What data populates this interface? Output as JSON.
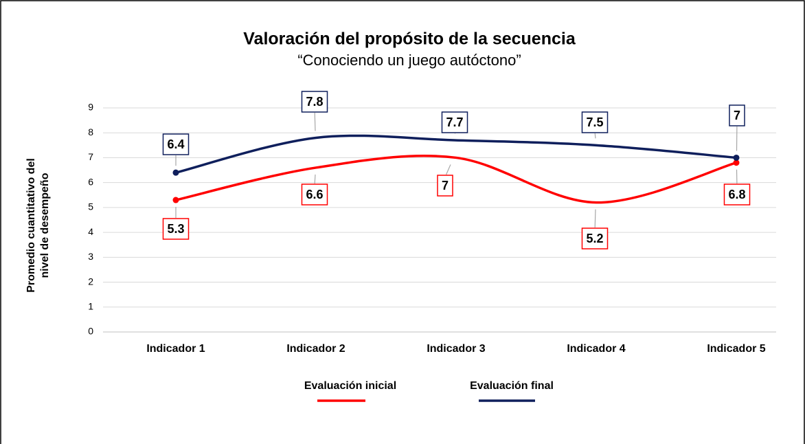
{
  "chart_data": {
    "type": "line",
    "title": "Valoración del propósito de la secuencia",
    "subtitle": "“Conociendo un juego autóctono”",
    "ylabel": [
      "Promedio cuantitativo del",
      "nivel de desempeño"
    ],
    "categories": [
      "Indicador 1",
      "Indicador 2",
      "Indicador 3",
      "Indicador 4",
      "Indicador 5"
    ],
    "series": [
      {
        "name": "Evaluación inicial",
        "color": "#ff0000",
        "values": [
          5.3,
          6.6,
          7,
          5.2,
          6.8
        ]
      },
      {
        "name": "Evaluación final",
        "color": "#0f1f5c",
        "values": [
          6.4,
          7.8,
          7.7,
          7.5,
          7
        ]
      }
    ],
    "ylim": [
      0,
      9
    ],
    "yticks": [
      0,
      1,
      2,
      3,
      4,
      5,
      6,
      7,
      8,
      9
    ],
    "grid": true,
    "smooth": true,
    "legend": "bottom"
  }
}
